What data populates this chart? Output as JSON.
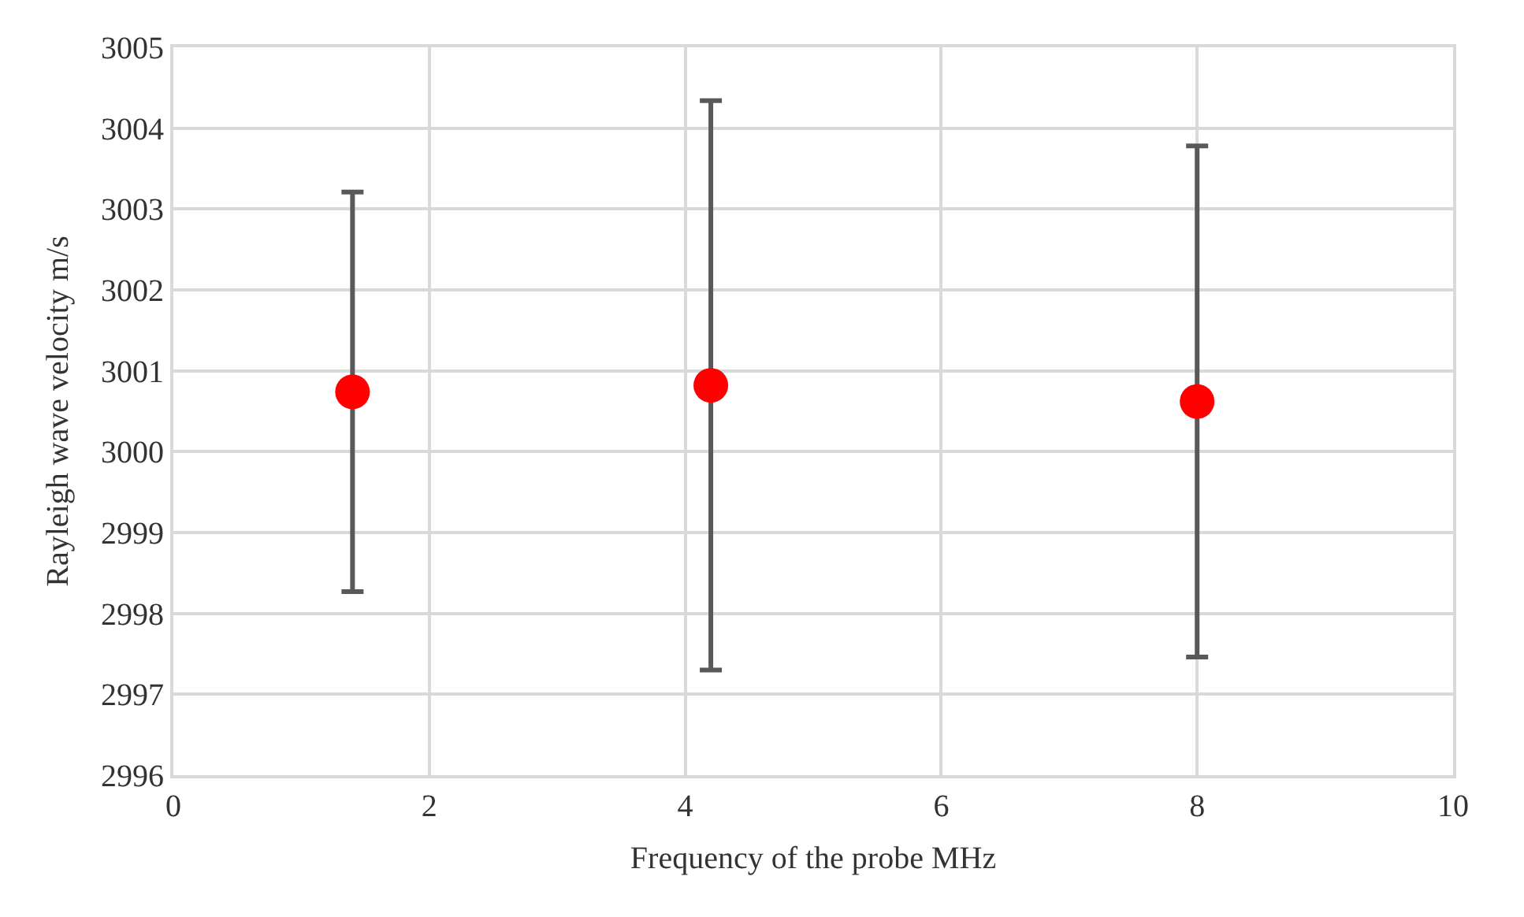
{
  "chart_data": {
    "type": "scatter",
    "xlabel": "Frequency of the probe MHz",
    "ylabel": "Rayleigh wave velocity m/s",
    "x": [
      1.4,
      4.2,
      8.0
    ],
    "values": [
      3000.74,
      3000.82,
      3000.62
    ],
    "errors": [
      2.47,
      3.52,
      3.16
    ],
    "color": "#ff0000",
    "marker": "circle",
    "xlim": [
      0,
      10
    ],
    "xticks": [
      0,
      2,
      4,
      6,
      8,
      10
    ],
    "ylim": [
      2996,
      3005
    ],
    "yticks": [
      2996,
      2997,
      2998,
      2999,
      3000,
      3001,
      3002,
      3003,
      3004,
      3005
    ],
    "grid": true
  }
}
